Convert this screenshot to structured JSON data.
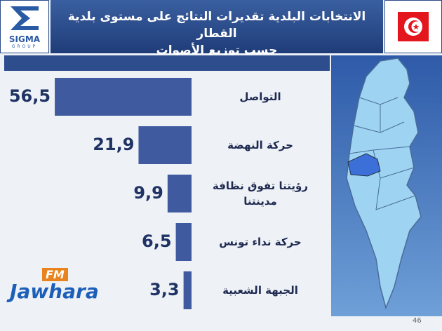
{
  "chart_data": {
    "type": "bar",
    "orientation": "horizontal",
    "title": "الانتخابات البلدية تقديرات النتائج على مستوى بلدية القطار",
    "subtitle": "حسب توزيع الأصوات",
    "categories": [
      "التواصل",
      "حركة النهضة",
      "رؤيتنا تفوق نظافة مدينتنا",
      "حركة نداء تونس",
      "الجبهة الشعبية"
    ],
    "values": [
      56.5,
      21.9,
      9.9,
      6.5,
      3.3
    ],
    "value_labels": [
      "56,5",
      "21,9",
      "9,9",
      "6,5",
      "3,3"
    ],
    "color": "#3f5a9e"
  },
  "logos": {
    "sigma": "SIGMA",
    "sigma_sub": "GROUP",
    "fm": "FM",
    "jawhara": "Jawhara"
  },
  "page_number": "46"
}
